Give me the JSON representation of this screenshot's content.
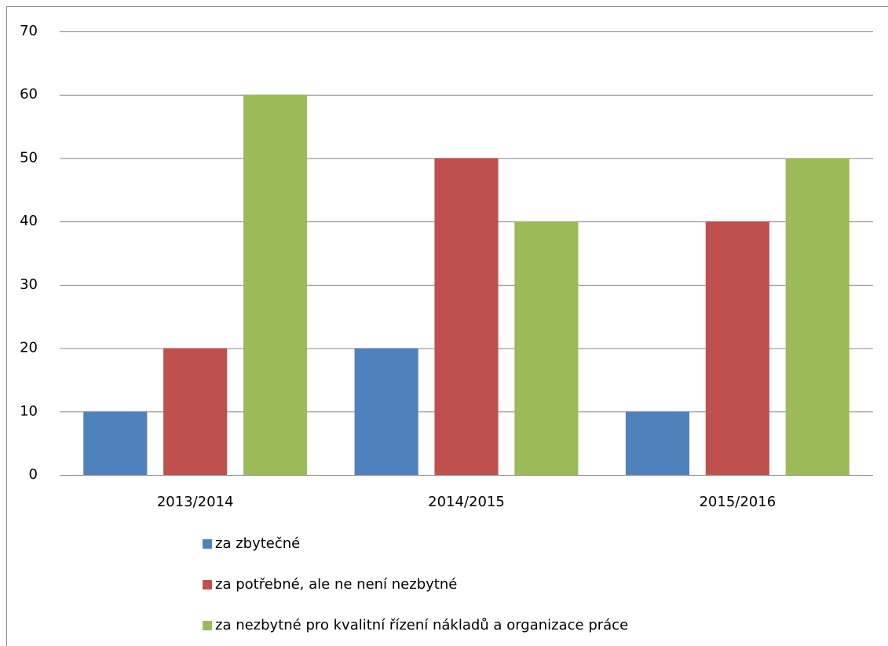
{
  "chart_data": {
    "type": "bar",
    "categories": [
      "2013/2014",
      "2014/2015",
      "2015/2016"
    ],
    "series": [
      {
        "name": "za zbytečné",
        "color": "#4f81bd",
        "values": [
          10,
          20,
          10
        ]
      },
      {
        "name": "za potřebné, ale ne není nezbytné",
        "color": "#c0504d",
        "values": [
          20,
          50,
          40
        ]
      },
      {
        "name": "za nezbytné pro kvalitní řízení nákladů a organizace práce",
        "color": "#9bbb59",
        "values": [
          60,
          40,
          50
        ]
      }
    ],
    "ylim": [
      0,
      70
    ],
    "yticks": [
      0,
      10,
      20,
      30,
      40,
      50,
      60,
      70
    ],
    "grid": true,
    "legend": "bottom"
  }
}
